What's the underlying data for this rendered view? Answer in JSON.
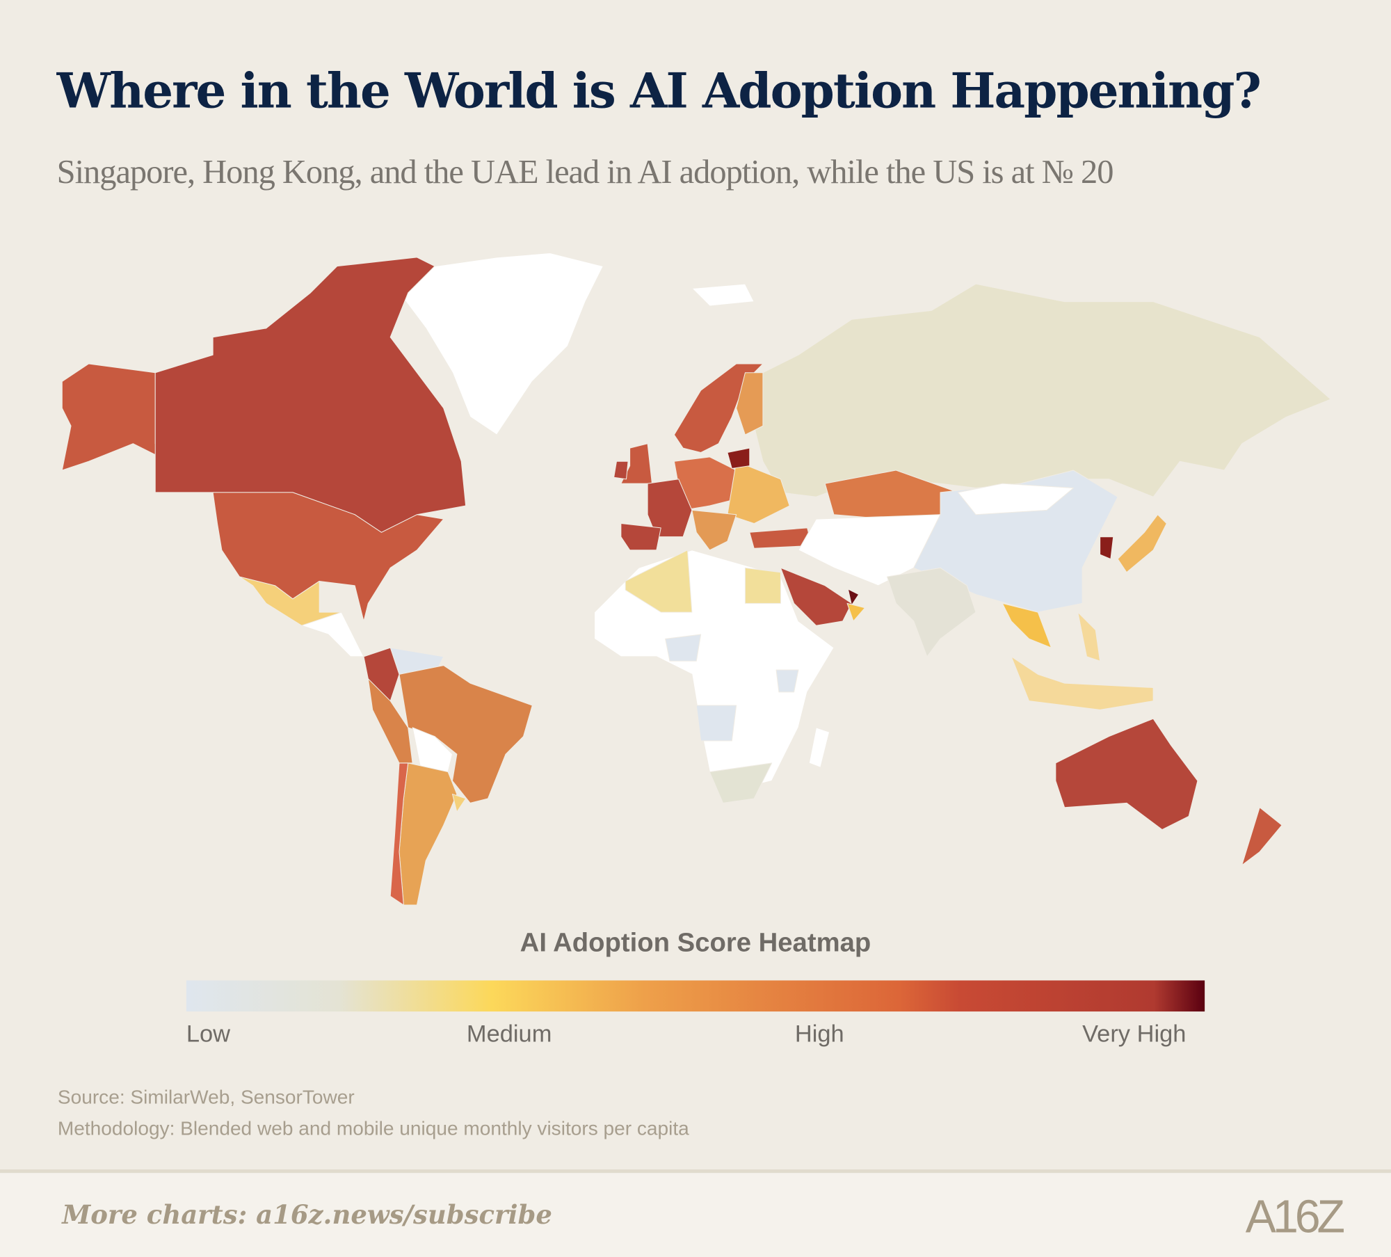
{
  "header": {
    "title": "Where in the World is AI Adoption Happening?",
    "subtitle": "Singapore, Hong Kong, and the UAE lead in AI adoption, while the US is at № 20"
  },
  "legend": {
    "title": "AI Adoption Score Heatmap",
    "labels": [
      "Low",
      "Medium",
      "High",
      "Very High"
    ],
    "gradient": [
      {
        "stop": 0,
        "color": "#dfe6ee"
      },
      {
        "stop": 0.15,
        "color": "#e4e3d4"
      },
      {
        "stop": 0.3,
        "color": "#fcd85a"
      },
      {
        "stop": 0.45,
        "color": "#eea04a"
      },
      {
        "stop": 0.7,
        "color": "#dc6638"
      },
      {
        "stop": 0.76,
        "color": "#c84a34"
      },
      {
        "stop": 0.95,
        "color": "#b03a30"
      },
      {
        "stop": 1,
        "color": "#5a0010"
      }
    ]
  },
  "notes": {
    "source": "Source: SimilarWeb, SensorTower",
    "methodology": "Methodology: Blended web and mobile unique monthly visitors per capita"
  },
  "footer": {
    "link": "More charts: a16z.news/subscribe",
    "logo": "A16Z"
  },
  "map": {
    "no_data_color": "#ffffff",
    "fills": {
      "greenland": "#ffffff",
      "iceland": "#ffffff",
      "canada": "#b5473a",
      "alaska": "#c85a40",
      "usa": "#c85a40",
      "mexico": "#f5d07a",
      "central-america": "#ffffff",
      "colombia": "#b5473a",
      "venezuela": "#dfe6ee",
      "brazil": "#d9844a",
      "peru": "#d9844a",
      "bolivia": "#ffffff",
      "argentina": "#e7a355",
      "chile": "#d9664a",
      "uruguay": "#f5d07a",
      "scandinavia": "#c85a40",
      "finland": "#e59b55",
      "uk": "#c85a40",
      "ireland": "#b5473a",
      "france": "#b5473a",
      "iberia": "#b5473a",
      "central-europe": "#d9704a",
      "eastern-europe": "#f0b860",
      "lithuania": "#8a1e1a",
      "italy-balkans": "#e39a55",
      "turkey": "#c85a40",
      "russia": "#e7e3cc",
      "kazakhstan": "#db7a48",
      "central-asia": "#ffffff",
      "mongolia": "#ffffff",
      "china": "#dfe6ee",
      "india": "#e4e2d6",
      "korea": "#8a1e1a",
      "japan": "#f0b860",
      "southeast-asia": "#f5c04a",
      "indonesia": "#f5d99a",
      "philippines": "#f5d99a",
      "australia": "#b5473a",
      "new-zealand": "#c85a40",
      "africa": "#ffffff",
      "algeria": "#f2df9a",
      "egypt": "#f2df9a",
      "saudi-arabia": "#b5473a",
      "uae": "#6b0f14",
      "oman": "#f5c04a",
      "south-africa": "#e3e3d3",
      "nigeria": "#dfe6ee",
      "angola": "#dfe6ee",
      "kenya": "#dfe6ee",
      "madagascar": "#ffffff"
    }
  }
}
